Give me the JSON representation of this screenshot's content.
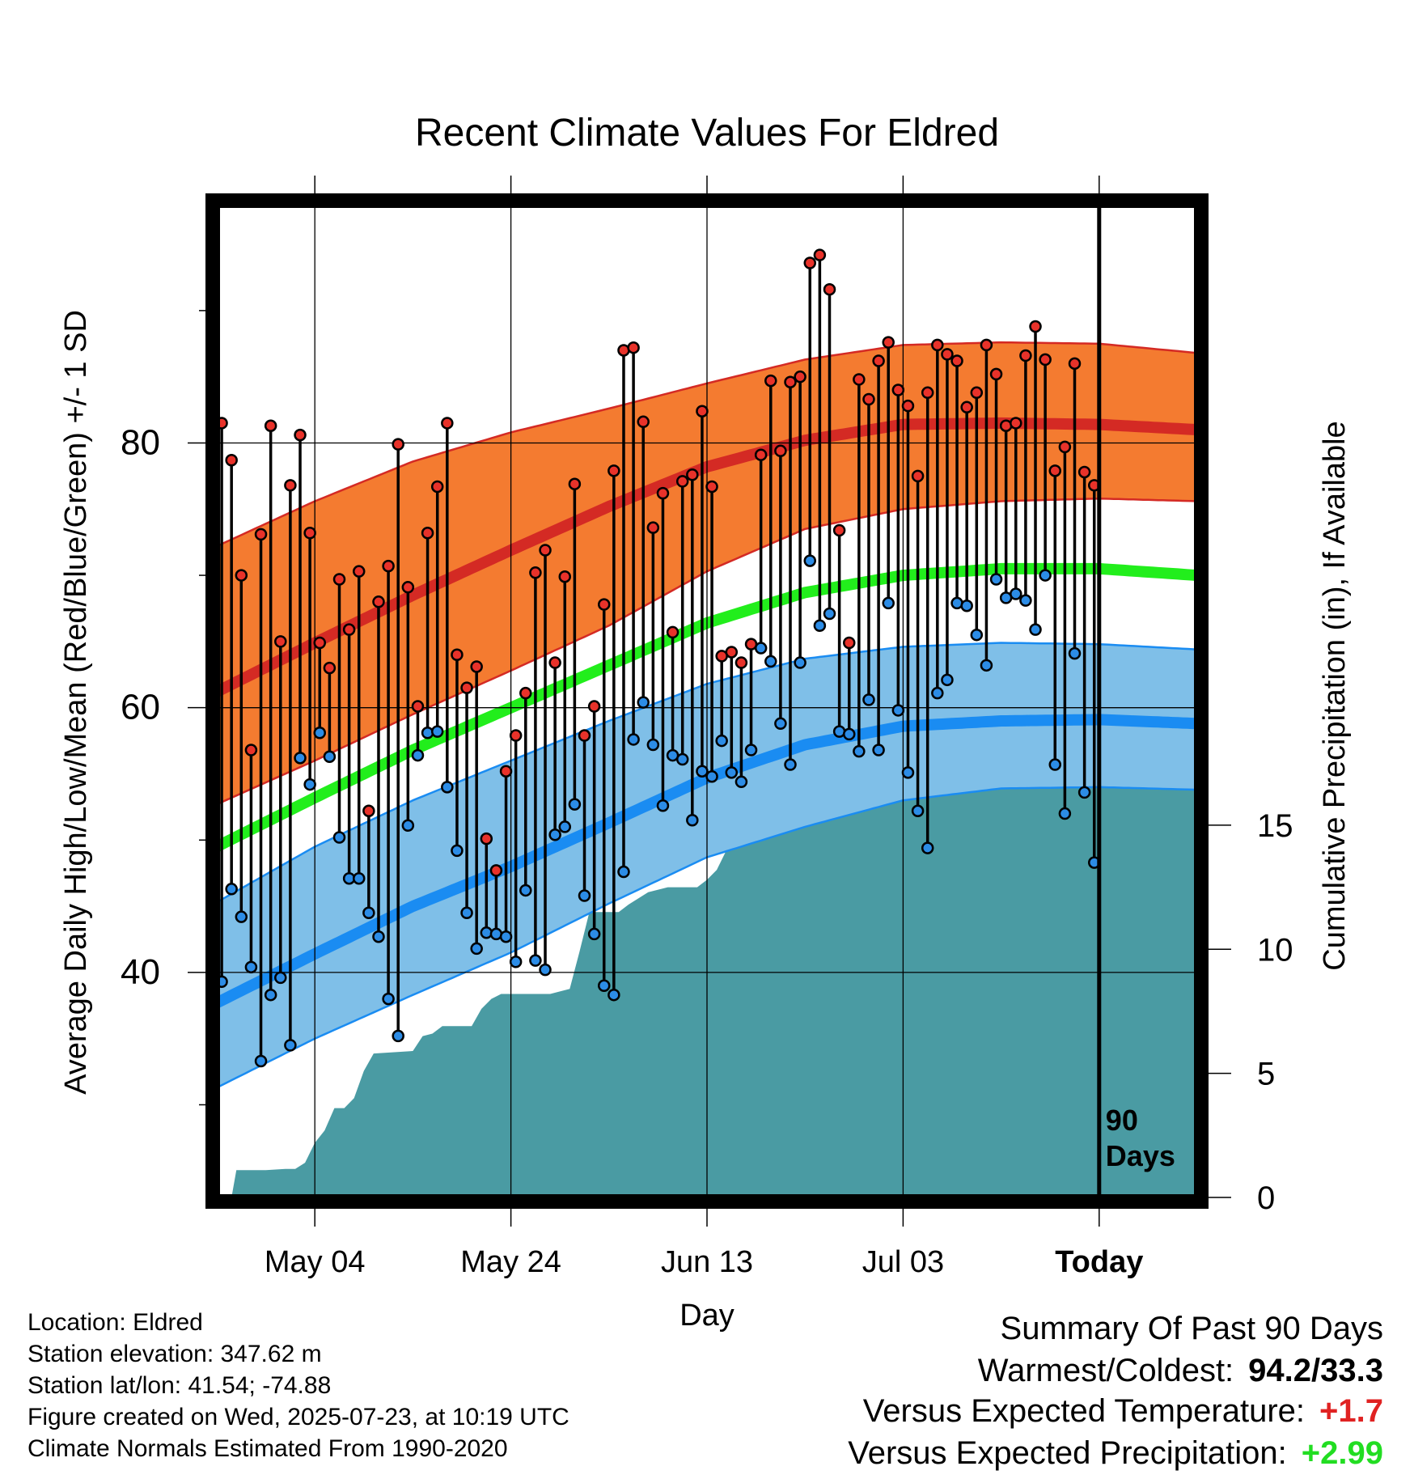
{
  "chart_data": {
    "type": "line",
    "title": "Recent Climate Values For Eldred",
    "xlabel": "Day",
    "ylabel": "Average Daily High/Low/Mean (Red/Blue/Green) +/- 1 SD",
    "y2label": "Cumulative Precipitation (in), If Available",
    "x_tick_labels": [
      "May 04",
      "May 24",
      "Jun 13",
      "Jul 03",
      "Today"
    ],
    "y_ticks": [
      40,
      60,
      80
    ],
    "y2_ticks": [
      0,
      5,
      10,
      15
    ],
    "day_range": [
      0,
      100
    ],
    "today_day": 90,
    "ylim": [
      23,
      98
    ],
    "y2lim": [
      0,
      40
    ],
    "period_label": "90 Days",
    "grid": true,
    "normal_high_center": [
      [
        0,
        61.2
      ],
      [
        10,
        64.9
      ],
      [
        20,
        68.5
      ],
      [
        30,
        71.9
      ],
      [
        40,
        75.2
      ],
      [
        50,
        78.2
      ],
      [
        60,
        80.2
      ],
      [
        70,
        81.4
      ],
      [
        80,
        81.5
      ],
      [
        90,
        81.4
      ],
      [
        100,
        81.0
      ]
    ],
    "normal_high_upper": [
      [
        0,
        72.2
      ],
      [
        10,
        75.6
      ],
      [
        20,
        78.6
      ],
      [
        30,
        80.8
      ],
      [
        40,
        82.6
      ],
      [
        50,
        84.5
      ],
      [
        60,
        86.3
      ],
      [
        70,
        87.4
      ],
      [
        80,
        87.6
      ],
      [
        90,
        87.5
      ],
      [
        100,
        86.8
      ]
    ],
    "normal_high_lower": [
      [
        0,
        52.7
      ],
      [
        10,
        56.0
      ],
      [
        20,
        59.5
      ],
      [
        30,
        62.8
      ],
      [
        40,
        66.2
      ],
      [
        50,
        70.3
      ],
      [
        60,
        73.5
      ],
      [
        70,
        75.0
      ],
      [
        80,
        75.6
      ],
      [
        90,
        75.8
      ],
      [
        100,
        75.6
      ]
    ],
    "normal_mean": [
      [
        0,
        49.5
      ],
      [
        10,
        53.2
      ],
      [
        20,
        56.8
      ],
      [
        30,
        60.0
      ],
      [
        40,
        63.2
      ],
      [
        50,
        66.4
      ],
      [
        60,
        68.7
      ],
      [
        70,
        70.0
      ],
      [
        80,
        70.5
      ],
      [
        90,
        70.5
      ],
      [
        100,
        70.0
      ]
    ],
    "normal_low_center": [
      [
        0,
        37.7
      ],
      [
        10,
        41.4
      ],
      [
        20,
        45.0
      ],
      [
        30,
        48.0
      ],
      [
        40,
        51.3
      ],
      [
        50,
        54.7
      ],
      [
        60,
        57.2
      ],
      [
        70,
        58.6
      ],
      [
        80,
        59.0
      ],
      [
        90,
        59.1
      ],
      [
        100,
        58.8
      ]
    ],
    "normal_low_upper": [
      [
        0,
        45.3
      ],
      [
        10,
        49.5
      ],
      [
        20,
        53.0
      ],
      [
        30,
        56.0
      ],
      [
        40,
        59.0
      ],
      [
        50,
        61.8
      ],
      [
        60,
        63.7
      ],
      [
        70,
        64.6
      ],
      [
        80,
        64.9
      ],
      [
        90,
        64.8
      ],
      [
        100,
        64.4
      ]
    ],
    "normal_low_lower": [
      [
        0,
        31.3
      ],
      [
        10,
        35.0
      ],
      [
        20,
        38.3
      ],
      [
        30,
        41.5
      ],
      [
        40,
        45.2
      ],
      [
        50,
        48.7
      ],
      [
        60,
        51.0
      ],
      [
        70,
        53.0
      ],
      [
        80,
        53.9
      ],
      [
        90,
        54.0
      ],
      [
        100,
        53.8
      ]
    ],
    "daily_high": [
      81.5,
      78.7,
      70.0,
      56.8,
      73.1,
      81.3,
      65.0,
      76.8,
      80.6,
      73.2,
      64.9,
      63.0,
      69.7,
      65.9,
      70.3,
      52.2,
      68.0,
      70.7,
      79.9,
      69.1,
      60.1,
      73.2,
      76.7,
      81.5,
      64.0,
      61.5,
      63.1,
      50.1,
      47.7,
      55.2,
      57.9,
      61.1,
      70.2,
      71.9,
      63.4,
      69.9,
      76.9,
      57.9,
      60.1,
      67.8,
      77.9,
      87.0,
      87.2,
      81.6,
      73.6,
      76.2,
      65.7,
      77.1,
      77.6,
      82.4,
      76.7,
      63.9,
      64.2,
      63.4,
      64.8,
      79.1,
      84.7,
      79.4,
      84.6,
      85.0,
      93.6,
      94.2,
      91.6,
      73.4,
      64.9,
      84.8,
      83.3,
      86.2,
      87.6,
      84.0,
      82.8,
      77.5,
      83.8,
      87.4,
      86.7,
      86.2,
      82.7,
      83.8,
      87.4,
      85.2,
      81.3,
      81.5,
      86.6,
      88.8,
      86.3,
      77.9,
      79.7,
      86.0,
      77.8,
      76.8
    ],
    "daily_low": [
      39.3,
      46.3,
      44.2,
      40.4,
      33.3,
      38.3,
      39.6,
      34.5,
      56.2,
      54.2,
      58.1,
      56.3,
      50.2,
      47.1,
      47.1,
      44.5,
      42.7,
      38.0,
      35.2,
      51.1,
      56.4,
      58.1,
      58.2,
      54.0,
      49.2,
      44.5,
      41.8,
      43.0,
      42.9,
      42.7,
      40.8,
      46.2,
      40.9,
      40.2,
      50.4,
      51.0,
      52.7,
      45.8,
      42.9,
      39.0,
      38.3,
      47.6,
      57.6,
      60.4,
      57.2,
      52.6,
      56.4,
      56.1,
      51.5,
      55.2,
      54.8,
      57.5,
      55.1,
      54.4,
      56.8,
      64.5,
      63.5,
      58.8,
      55.7,
      63.4,
      71.1,
      66.2,
      67.1,
      58.2,
      58.0,
      56.7,
      60.6,
      56.8,
      67.9,
      59.8,
      55.1,
      52.2,
      49.4,
      61.1,
      62.1,
      67.9,
      67.7,
      65.5,
      63.2,
      69.7,
      68.3,
      68.6,
      68.1,
      65.9,
      70.0,
      55.7,
      52.0,
      64.1,
      53.6,
      48.3
    ],
    "cumulative_precipitation": [
      [
        0,
        0
      ],
      [
        1.5,
        0
      ],
      [
        2,
        1.1
      ],
      [
        5,
        1.1
      ],
      [
        7,
        1.15
      ],
      [
        8,
        1.15
      ],
      [
        9,
        1.4
      ],
      [
        10,
        2.2
      ],
      [
        11,
        2.7
      ],
      [
        12,
        3.6
      ],
      [
        13,
        3.6
      ],
      [
        14,
        4.0
      ],
      [
        15,
        5.1
      ],
      [
        16,
        5.8
      ],
      [
        20,
        5.9
      ],
      [
        21,
        6.5
      ],
      [
        22,
        6.6
      ],
      [
        23,
        6.9
      ],
      [
        26,
        6.9
      ],
      [
        27,
        7.6
      ],
      [
        28,
        8.0
      ],
      [
        29,
        8.2
      ],
      [
        34,
        8.2
      ],
      [
        36,
        8.4
      ],
      [
        37,
        9.9
      ],
      [
        38,
        11.5
      ],
      [
        41,
        11.5
      ],
      [
        42,
        11.8
      ],
      [
        44,
        12.3
      ],
      [
        46,
        12.5
      ],
      [
        49,
        12.5
      ],
      [
        50,
        12.8
      ],
      [
        51,
        13.2
      ],
      [
        52,
        14.0
      ],
      [
        53,
        14.6
      ],
      [
        54,
        15.4
      ],
      [
        55,
        15.9
      ],
      [
        56,
        16.2
      ],
      [
        58,
        16.2
      ],
      [
        59,
        16.7
      ],
      [
        62,
        16.7
      ],
      [
        63,
        17.1
      ],
      [
        64,
        17.3
      ],
      [
        66,
        17.3
      ],
      [
        67,
        17.4
      ],
      [
        70,
        17.4
      ],
      [
        71,
        17.6
      ],
      [
        76,
        17.6
      ],
      [
        80,
        17.6
      ],
      [
        80.3,
        17.6
      ],
      [
        81,
        18.5
      ],
      [
        85,
        18.6
      ],
      [
        86,
        18.8
      ],
      [
        100,
        18.8
      ]
    ]
  },
  "legend": {
    "colors": {
      "high_band": "#f47b30",
      "high_line": "#d42a24",
      "mean_line": "#22ee1c",
      "low_band": "#7fbfe8",
      "low_line": "#1a8cf2",
      "precip": "#4a9ba3",
      "high_dot": "#e8322a",
      "low_dot": "#2c8ce6"
    }
  },
  "info": {
    "location": "Location: Eldred",
    "elevation": "Station elevation: 347.62 m",
    "latlon": "Station lat/lon: 41.54; -74.88",
    "created": "Figure created on Wed, 2025-07-23, at 10:19 UTC",
    "normals": "Climate Normals Estimated From 1990-2020"
  },
  "summary": {
    "title": "Summary Of Past 90 Days",
    "warm_cold_label": "Warmest/Coldest:",
    "warm_cold_value": "94.2/33.3",
    "temp_label": "Versus Expected Temperature:",
    "temp_value": "+1.7",
    "temp_color": "#e02222",
    "precip_label": "Versus Expected Precipitation:",
    "precip_value": "+2.99",
    "precip_color": "#22dd22"
  }
}
